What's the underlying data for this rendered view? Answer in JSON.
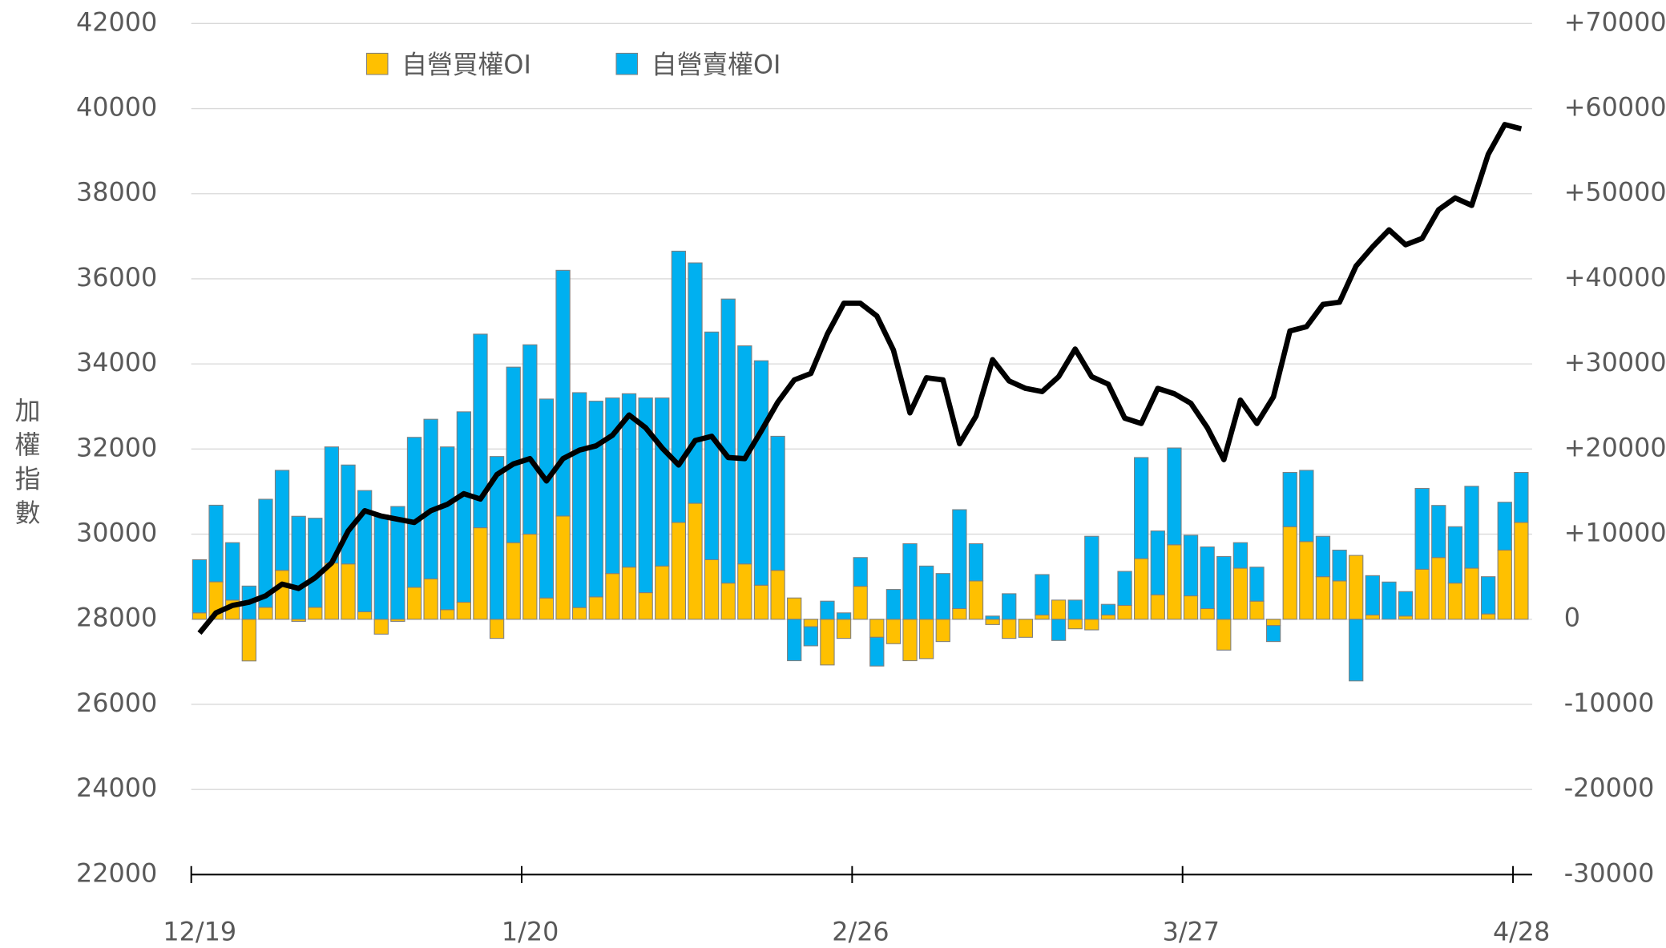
{
  "chart_data": {
    "type": "bar",
    "ylabel": "加權指數",
    "categories": [
      "12/19",
      null,
      null,
      null,
      null,
      null,
      null,
      null,
      null,
      null,
      null,
      null,
      null,
      null,
      null,
      null,
      null,
      null,
      null,
      null,
      "1/20",
      null,
      null,
      null,
      null,
      null,
      null,
      null,
      null,
      null,
      null,
      null,
      null,
      null,
      null,
      null,
      null,
      null,
      null,
      null,
      "2/26",
      null,
      null,
      null,
      null,
      null,
      null,
      null,
      null,
      null,
      null,
      null,
      null,
      null,
      null,
      null,
      null,
      null,
      null,
      null,
      "3/27",
      null,
      null,
      null,
      null,
      null,
      null,
      null,
      null,
      null,
      null,
      null,
      null,
      null,
      null,
      null,
      null,
      null,
      null,
      null,
      "4/28"
    ],
    "series": [
      {
        "name": "自營買權OI",
        "type": "bar",
        "axis": "y2",
        "color": "#FFC000",
        "values": [
          750,
          4400,
          2250,
          -4900,
          1400,
          5750,
          -250,
          1400,
          6600,
          6500,
          875,
          -1750,
          -250,
          3750,
          4750,
          1125,
          2000,
          10750,
          -2250,
          9000,
          10000,
          2500,
          12125,
          1375,
          2625,
          5375,
          6125,
          3125,
          6250,
          11375,
          13625,
          7000,
          4250,
          6500,
          4000,
          5750,
          2500,
          -875,
          -5375,
          -2250,
          3875,
          -2125,
          -2875,
          -4875,
          -4625,
          -2625,
          1250,
          4500,
          -625,
          -2250,
          -2125,
          500,
          2250,
          -1125,
          -1250,
          500,
          1625,
          7125,
          2875,
          8750,
          2750,
          1250,
          -3625,
          6000,
          2125,
          -750,
          10875,
          9125,
          5000,
          4500,
          7500,
          500,
          0,
          375,
          5875,
          7250,
          4250,
          6000,
          625,
          8125,
          11375
        ]
      },
      {
        "name": "自營賣權OI",
        "type": "bar",
        "axis": "y2",
        "color": "#00B0F0",
        "values": [
          6250,
          9000,
          6750,
          3900,
          12700,
          11750,
          12100,
          10475,
          13650,
          11625,
          14250,
          12250,
          13250,
          17625,
          18750,
          19125,
          22375,
          22750,
          19125,
          20625,
          22250,
          23375,
          28875,
          25250,
          23000,
          20625,
          20375,
          22875,
          19750,
          31875,
          28250,
          26750,
          33375,
          25625,
          26375,
          15750,
          -4875,
          -2250,
          2125,
          750,
          3375,
          -3375,
          3500,
          8875,
          6250,
          5375,
          11625,
          4375,
          375,
          3000,
          0,
          4750,
          -2500,
          2250,
          9750,
          1250,
          4000,
          11875,
          7500,
          11375,
          7125,
          7250,
          7375,
          3000,
          4000,
          -1875,
          6375,
          8375,
          4750,
          3625,
          -7250,
          4625,
          4375,
          2875,
          9500,
          6125,
          6625,
          9625,
          4375,
          5625,
          5875
        ]
      },
      {
        "type": "line",
        "axis": "y",
        "color": "#000000",
        "values": [
          27675,
          28150,
          28325,
          28400,
          28550,
          28825,
          28725,
          28975,
          29325,
          30075,
          30550,
          30425,
          30350,
          30275,
          30550,
          30700,
          30950,
          30825,
          31400,
          31650,
          31775,
          31250,
          31775,
          31975,
          32075,
          32325,
          32800,
          32500,
          32025,
          31625,
          32200,
          32300,
          31800,
          31775,
          32425,
          33100,
          33625,
          33775,
          34700,
          35425,
          35425,
          35125,
          34325,
          32850,
          33675,
          33625,
          32125,
          32775,
          34100,
          33600,
          33425,
          33350,
          33700,
          34350,
          33700,
          33525,
          32725,
          32600,
          33425,
          33300,
          33075,
          32500,
          31750,
          33150,
          32600,
          33225,
          34775,
          34875,
          35400,
          35450,
          36300,
          36750,
          37150,
          36800,
          36950,
          37625,
          37900,
          37725,
          38925,
          39625,
          39525
        ]
      }
    ],
    "ylim": [
      22000,
      42000
    ],
    "yticks": [
      22000,
      24000,
      26000,
      28000,
      30000,
      32000,
      34000,
      36000,
      38000,
      40000,
      42000
    ],
    "y2lim": [
      -30000,
      70000
    ],
    "y2ticks": [
      -30000,
      -20000,
      -10000,
      0,
      {
        "value": 10000,
        "label": "+10000"
      },
      {
        "value": 20000,
        "label": "+20000"
      },
      {
        "value": 30000,
        "label": "+30000"
      },
      {
        "value": 40000,
        "label": "+40000"
      },
      {
        "value": 50000,
        "label": "+50000"
      },
      {
        "value": 60000,
        "label": "+60000"
      },
      {
        "value": 70000,
        "label": "+70000"
      }
    ],
    "grid": true,
    "legend": "top-left"
  }
}
